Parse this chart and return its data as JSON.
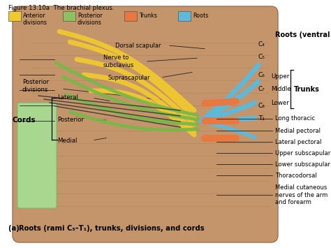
{
  "title": "Figure 13.10a  The brachial plexus.",
  "figure_bg": "#FFFFFF",
  "body_color": "#C4956A",
  "body_dark": "#A07050",
  "rib_color": "#B08060",
  "arm_pad_color": "#A8D890",
  "arm_pad_edge": "#80B870",
  "legend_items": [
    {
      "label": "Anterior\ndivisions",
      "color": "#F0C830"
    },
    {
      "label": "Posterior\ndivisions",
      "color": "#90C060"
    },
    {
      "label": "Trunks",
      "color": "#E87840"
    },
    {
      "label": "Roots",
      "color": "#60B8D8"
    }
  ],
  "root_colors": [
    "#60B8D8",
    "#60B8D8",
    "#60B8D8",
    "#60B8D8",
    "#60B8D8"
  ],
  "trunk_color": "#E87840",
  "yellow_color": "#F0C830",
  "green_color": "#78B848",
  "annotation_line_color": "#222222",
  "bottom_caption_a": "(a) ",
  "bottom_caption_rest": "Roots (rami C₅–T₁), trunks, divisions, and cords"
}
